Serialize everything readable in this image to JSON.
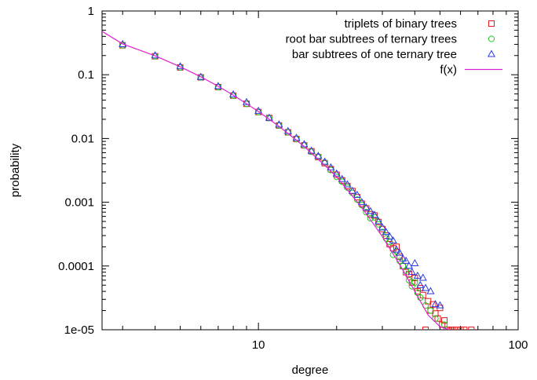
{
  "chart_data": {
    "type": "scatter",
    "title": "",
    "xlabel": "degree",
    "ylabel": "probability",
    "xscale": "log",
    "yscale": "log",
    "xlim": [
      2.5,
      100
    ],
    "ylim": [
      1e-05,
      1
    ],
    "x_ticks": [
      {
        "value": 10,
        "label": "10"
      },
      {
        "value": 100,
        "label": "100"
      }
    ],
    "y_ticks": [
      {
        "value": 1,
        "label": "1"
      },
      {
        "value": 0.1,
        "label": "0.1"
      },
      {
        "value": 0.01,
        "label": "0.01"
      },
      {
        "value": 0.001,
        "label": "0.001"
      },
      {
        "value": 0.0001,
        "label": "0.0001"
      },
      {
        "value": 1e-05,
        "label": "1e-05"
      }
    ],
    "grid": false,
    "legend_position": "top-right",
    "series": [
      {
        "name": "triplets of binary trees",
        "marker": "square",
        "color": "#e41a1c",
        "points": [
          [
            3,
            0.29
          ],
          [
            4,
            0.195
          ],
          [
            5,
            0.13
          ],
          [
            6,
            0.091
          ],
          [
            7,
            0.064
          ],
          [
            8,
            0.047
          ],
          [
            9,
            0.035
          ],
          [
            10,
            0.026
          ],
          [
            11,
            0.021
          ],
          [
            12,
            0.016
          ],
          [
            13,
            0.0125
          ],
          [
            14,
            0.0098
          ],
          [
            15,
            0.0078
          ],
          [
            16,
            0.0063
          ],
          [
            17,
            0.0051
          ],
          [
            18,
            0.0041
          ],
          [
            19,
            0.0033
          ],
          [
            20,
            0.0027
          ],
          [
            21,
            0.0022
          ],
          [
            22,
            0.0018
          ],
          [
            23,
            0.0015
          ],
          [
            24,
            0.0012
          ],
          [
            25,
            0.00095
          ],
          [
            26,
            0.0008
          ],
          [
            27,
            0.00065
          ],
          [
            28,
            0.00062
          ],
          [
            29,
            0.00049
          ],
          [
            30,
            0.00038
          ],
          [
            31,
            0.0003
          ],
          [
            32,
            0.00022
          ],
          [
            33,
            0.00019
          ],
          [
            34,
            0.0002
          ],
          [
            35,
            0.00014
          ],
          [
            36,
            0.0001
          ],
          [
            37,
            8e-05
          ],
          [
            38,
            7.5e-05
          ],
          [
            39,
            5.5e-05
          ],
          [
            40,
            6.5e-05
          ],
          [
            41,
            4e-05
          ],
          [
            42,
            4.5e-05
          ],
          [
            43,
            3.5e-05
          ],
          [
            44,
            1e-05
          ],
          [
            45,
            2.8e-05
          ],
          [
            46,
            2e-05
          ],
          [
            47,
            2.5e-05
          ],
          [
            48,
            1.8e-05
          ],
          [
            49,
            1.5e-05
          ],
          [
            50,
            2.2e-05
          ],
          [
            51,
            1.2e-05
          ],
          [
            52,
            1.4e-05
          ],
          [
            53,
            1e-05
          ],
          [
            54,
            1e-05
          ],
          [
            55,
            1e-05
          ],
          [
            56,
            1e-05
          ],
          [
            57,
            1e-05
          ],
          [
            58,
            1e-05
          ],
          [
            60,
            1e-05
          ],
          [
            62,
            1e-05
          ],
          [
            66,
            1e-05
          ]
        ]
      },
      {
        "name": "root bar subtrees of ternary trees",
        "marker": "circle",
        "color": "#1dcc1d",
        "points": [
          [
            3,
            0.29
          ],
          [
            4,
            0.195
          ],
          [
            5,
            0.13
          ],
          [
            6,
            0.091
          ],
          [
            7,
            0.064
          ],
          [
            8,
            0.047
          ],
          [
            9,
            0.035
          ],
          [
            10,
            0.026
          ],
          [
            11,
            0.021
          ],
          [
            12,
            0.016
          ],
          [
            13,
            0.0125
          ],
          [
            14,
            0.0098
          ],
          [
            15,
            0.0078
          ],
          [
            16,
            0.0062
          ],
          [
            17,
            0.0052
          ],
          [
            18,
            0.0042
          ],
          [
            19,
            0.0032
          ],
          [
            20,
            0.0025
          ],
          [
            21,
            0.0021
          ],
          [
            22,
            0.0017
          ],
          [
            23,
            0.0014
          ],
          [
            24,
            0.0011
          ],
          [
            25,
            0.0009
          ],
          [
            26,
            0.0007
          ],
          [
            27,
            0.00056
          ],
          [
            28,
            0.00058
          ],
          [
            29,
            0.00045
          ],
          [
            30,
            0.00034
          ],
          [
            31,
            0.00027
          ],
          [
            32,
            0.00024
          ],
          [
            33,
            0.00015
          ],
          [
            34,
            0.00017
          ],
          [
            35,
            0.00012
          ],
          [
            36,
            0.0001
          ],
          [
            37,
            8.5e-05
          ],
          [
            38,
            6e-05
          ],
          [
            39,
            4.8e-05
          ],
          [
            40,
            5.5e-05
          ],
          [
            41,
            3.8e-05
          ],
          [
            42,
            3.2e-05
          ],
          [
            44,
            2.4e-05
          ],
          [
            46,
            2e-05
          ],
          [
            48,
            1.5e-05
          ],
          [
            52,
            1.2e-05
          ]
        ]
      },
      {
        "name": "bar subtrees of one ternary tree",
        "marker": "triangle",
        "color": "#2b3be0",
        "points": [
          [
            3,
            0.3
          ],
          [
            4,
            0.2
          ],
          [
            5,
            0.135
          ],
          [
            6,
            0.092
          ],
          [
            7,
            0.066
          ],
          [
            8,
            0.049
          ],
          [
            9,
            0.037
          ],
          [
            10,
            0.027
          ],
          [
            11,
            0.021
          ],
          [
            12,
            0.0165
          ],
          [
            13,
            0.013
          ],
          [
            14,
            0.0102
          ],
          [
            15,
            0.0081
          ],
          [
            16,
            0.0064
          ],
          [
            17,
            0.0053
          ],
          [
            18,
            0.0043
          ],
          [
            19,
            0.0035
          ],
          [
            20,
            0.0028
          ],
          [
            21,
            0.0023
          ],
          [
            22,
            0.0019
          ],
          [
            23,
            0.0015
          ],
          [
            24,
            0.0013
          ],
          [
            25,
            0.001
          ],
          [
            26,
            0.00082
          ],
          [
            27,
            0.00072
          ],
          [
            28,
            0.00063
          ],
          [
            29,
            0.0005
          ],
          [
            30,
            0.0004
          ],
          [
            31,
            0.00034
          ],
          [
            32,
            0.00029
          ],
          [
            33,
            0.00025
          ],
          [
            34,
            0.00018
          ],
          [
            35,
            0.00016
          ],
          [
            36,
            0.00013
          ],
          [
            37,
            0.00012
          ],
          [
            38,
            0.0001
          ],
          [
            39,
            8e-05
          ],
          [
            40,
            0.00011
          ],
          [
            41,
            7e-05
          ],
          [
            42,
            5e-05
          ],
          [
            43,
            6.5e-05
          ],
          [
            44,
            4.5e-05
          ],
          [
            46,
            4e-05
          ],
          [
            48,
            2.5e-05
          ],
          [
            50,
            2.4e-05
          ]
        ]
      },
      {
        "name": "f(x)",
        "marker": "line",
        "color": "#e020d0",
        "points": [
          [
            2.5,
            0.48
          ],
          [
            3,
            0.305
          ],
          [
            4,
            0.198
          ],
          [
            5,
            0.133
          ],
          [
            6,
            0.093
          ],
          [
            7,
            0.066
          ],
          [
            8,
            0.048
          ],
          [
            10,
            0.0265
          ],
          [
            12,
            0.0155
          ],
          [
            15,
            0.0075
          ],
          [
            18,
            0.0038
          ],
          [
            20,
            0.0025
          ],
          [
            25,
            0.00083
          ],
          [
            30,
            0.00029
          ],
          [
            35,
            0.000105
          ],
          [
            40,
            4e-05
          ],
          [
            45,
            1.7e-05
          ],
          [
            50,
            1.12e-05
          ],
          [
            55,
            9.8e-06
          ]
        ]
      }
    ]
  }
}
